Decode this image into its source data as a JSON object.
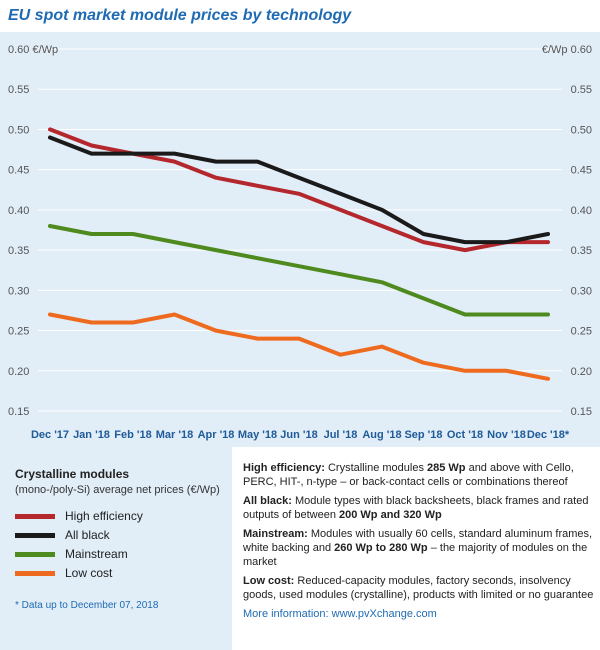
{
  "title": "EU spot market module prices  by technology",
  "chart_data": {
    "type": "line",
    "title": "EU spot market module prices  by technology",
    "y_axis_unit_left": "0.60 €/Wp",
    "y_axis_unit_right": "€/Wp 0.60",
    "ylim": [
      0.15,
      0.6
    ],
    "yticks": [
      "0.55",
      "0.50",
      "0.45",
      "0.40",
      "0.35",
      "0.30",
      "0.25",
      "0.20",
      "0.15"
    ],
    "categories": [
      "Dec '17",
      "Jan '18",
      "Feb '18",
      "Mar '18",
      "Apr '18",
      "May '18",
      "Jun '18",
      "Jul '18",
      "Aug '18",
      "Sep '18",
      "Oct '18",
      "Nov '18",
      "Dec '18*"
    ],
    "series": [
      {
        "name": "High efficiency",
        "color": "#b3272d",
        "values": [
          0.5,
          0.48,
          0.47,
          0.46,
          0.44,
          0.43,
          0.42,
          0.4,
          0.38,
          0.36,
          0.35,
          0.36,
          0.36
        ]
      },
      {
        "name": "All black",
        "color": "#1a1a1a",
        "values": [
          0.49,
          0.47,
          0.47,
          0.47,
          0.46,
          0.46,
          0.44,
          0.42,
          0.4,
          0.37,
          0.36,
          0.36,
          0.37
        ]
      },
      {
        "name": "Mainstream",
        "color": "#4f8a1f",
        "values": [
          0.38,
          0.37,
          0.37,
          0.36,
          0.35,
          0.34,
          0.33,
          0.32,
          0.31,
          0.29,
          0.27,
          0.27,
          0.27
        ]
      },
      {
        "name": "Low cost",
        "color": "#ee6a1e",
        "values": [
          0.27,
          0.26,
          0.26,
          0.27,
          0.25,
          0.24,
          0.24,
          0.22,
          0.23,
          0.21,
          0.2,
          0.2,
          0.19
        ]
      }
    ],
    "grid": true,
    "legend_position": "bottom-left"
  },
  "legend": {
    "title": "Crystalline modules",
    "subtitle": "(mono-/poly-Si) average net prices (€/Wp)",
    "items": [
      {
        "label": "High efficiency",
        "color": "#b3272d"
      },
      {
        "label": "All black",
        "color": "#1a1a1a"
      },
      {
        "label": "Mainstream",
        "color": "#4f8a1f"
      },
      {
        "label": "Low cost",
        "color": "#ee6a1e"
      }
    ],
    "note": "* Data up to December 07, 2018"
  },
  "descriptions": {
    "high_efficiency": {
      "term": "High efficiency:",
      "text_a": " Crystalline modules ",
      "bold_a": "285 Wp",
      "text_b": " and above with Cello, PERC, HIT-, n-type – or back-contact cells or combinations thereof"
    },
    "all_black": {
      "term": "All black:",
      "text_a": " Module types with black backsheets, black frames and rated outputs of between ",
      "bold_a": "200 Wp and 320 Wp"
    },
    "mainstream": {
      "term": "Mainstream:",
      "text_a": " Modules with usually 60 cells, standard aluminum frames, white backing and ",
      "bold_a": "260 Wp to 280 Wp",
      "text_b": " – the majority of modules on the market"
    },
    "low_cost": {
      "term": "Low cost:",
      "text_a": " Reduced-capacity modules, factory seconds, insolvency goods, used modules (crystalline), products with limited or no guarantee"
    },
    "more_info": "More information: www.pvXchange.com"
  }
}
